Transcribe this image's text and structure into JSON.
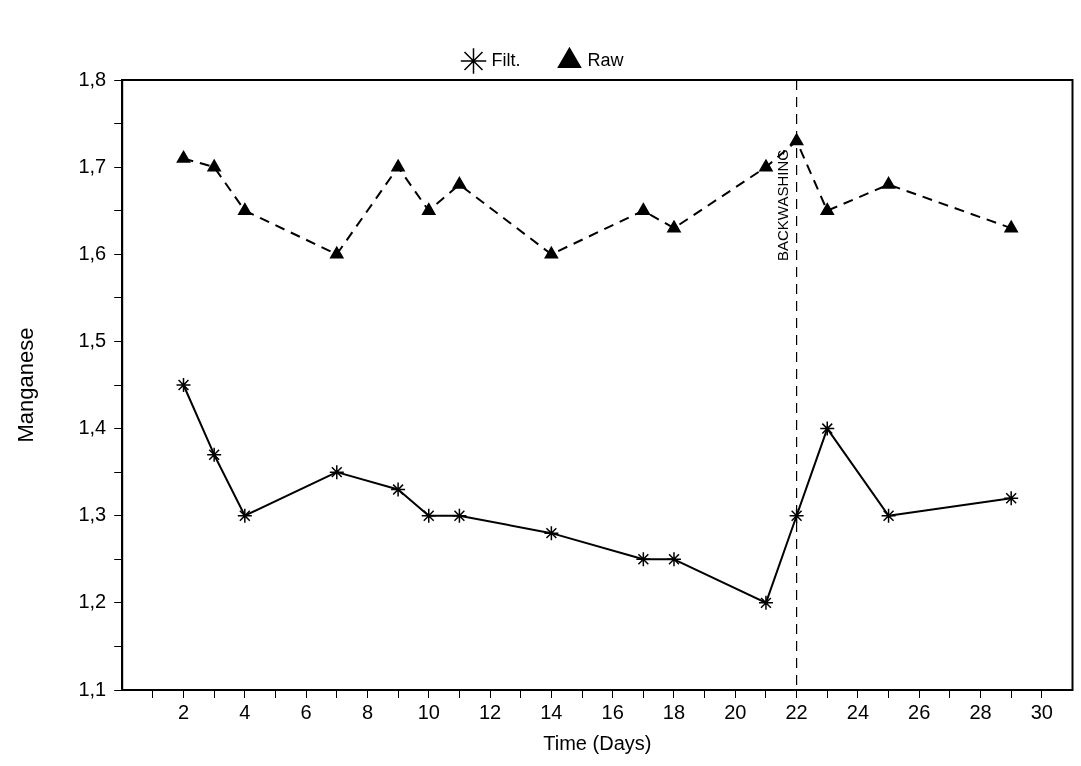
{
  "chart_data": {
    "type": "line",
    "xlabel": "Time (Days)",
    "ylabel": "Manganese",
    "xlim": [
      0,
      31
    ],
    "xticks": [
      {
        "value": 1,
        "label": null
      },
      2,
      {
        "value": 3,
        "label": null
      },
      4,
      {
        "value": 5,
        "label": null
      },
      6,
      {
        "value": 7,
        "label": null
      },
      8,
      {
        "value": 9,
        "label": null
      },
      10,
      {
        "value": 11,
        "label": null
      },
      12,
      {
        "value": 13,
        "label": null
      },
      14,
      {
        "value": 15,
        "label": null
      },
      16,
      {
        "value": 17,
        "label": null
      },
      18,
      {
        "value": 19,
        "label": null
      },
      20,
      {
        "value": 21,
        "label": null
      },
      22,
      {
        "value": 23,
        "label": null
      },
      24,
      {
        "value": 25,
        "label": null
      },
      26,
      {
        "value": 27,
        "label": null
      },
      28,
      {
        "value": 29,
        "label": null
      },
      30
    ],
    "ylim": [
      1.1,
      1.8
    ],
    "yticks": [
      {
        "value": 1.1,
        "label": "1,1"
      },
      {
        "value": 1.15,
        "label": null
      },
      {
        "value": 1.2,
        "label": "1,2"
      },
      {
        "value": 1.25,
        "label": null
      },
      {
        "value": 1.3,
        "label": "1,3"
      },
      {
        "value": 1.35,
        "label": null
      },
      {
        "value": 1.4,
        "label": "1,4"
      },
      {
        "value": 1.45,
        "label": null
      },
      {
        "value": 1.5,
        "label": "1,5"
      },
      {
        "value": 1.55,
        "label": null
      },
      {
        "value": 1.6,
        "label": "1,6"
      },
      {
        "value": 1.65,
        "label": null
      },
      {
        "value": 1.7,
        "label": "1,7"
      },
      {
        "value": 1.75,
        "label": null
      },
      {
        "value": 1.8,
        "label": "1,8"
      }
    ],
    "legend": "top",
    "series": [
      {
        "name": "Filt.",
        "color": "#000000",
        "marker": "cross",
        "line_style": "solid",
        "x": [
          2,
          3,
          4,
          7,
          9,
          10,
          11,
          14,
          17,
          18,
          21,
          22,
          23,
          25,
          29
        ],
        "values": [
          1.45,
          1.37,
          1.3,
          1.35,
          1.33,
          1.3,
          1.3,
          1.28,
          1.25,
          1.25,
          1.2,
          1.3,
          1.4,
          1.3,
          1.32
        ]
      },
      {
        "name": "Raw",
        "color": "#000000",
        "marker": "triangle",
        "line_style": "dashed",
        "x": [
          2,
          3,
          4,
          7,
          9,
          10,
          11,
          14,
          17,
          18,
          21,
          22,
          23,
          25,
          29
        ],
        "values": [
          1.71,
          1.7,
          1.65,
          1.6,
          1.7,
          1.65,
          1.68,
          1.6,
          1.65,
          1.63,
          1.7,
          1.73,
          1.65,
          1.68,
          1.63
        ]
      }
    ],
    "ref_lines": [
      {
        "axis": "x",
        "value": 22,
        "label": "BACKWASHING",
        "line_style": "dashed",
        "color": "#000000"
      }
    ]
  }
}
